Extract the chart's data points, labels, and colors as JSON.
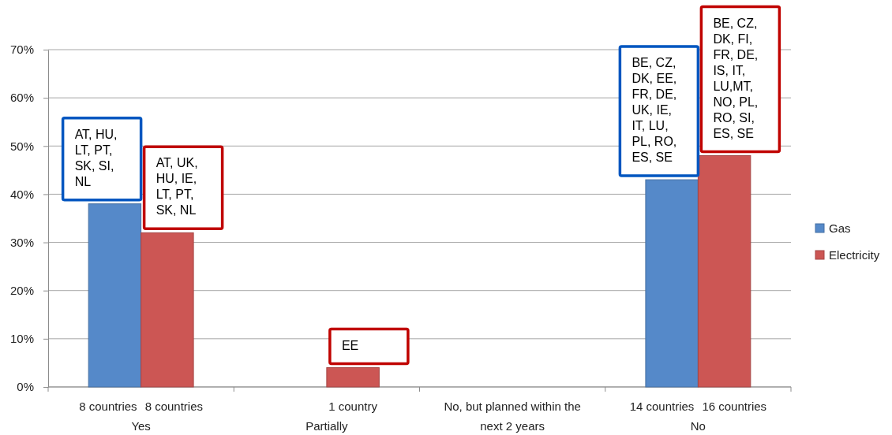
{
  "chart_data": {
    "type": "bar",
    "categories": [
      "Yes",
      "Partially",
      "No, but planned within the next 2 years",
      "No"
    ],
    "series": [
      {
        "name": "Gas",
        "color": "#5589c9",
        "values": [
          38,
          null,
          null,
          43
        ]
      },
      {
        "name": "Electricity",
        "color": "#cc5654",
        "values": [
          32,
          4,
          null,
          48
        ]
      }
    ],
    "ylim": [
      0,
      70
    ],
    "yticks": [
      {
        "value": 0,
        "label": "0%"
      },
      {
        "value": 10,
        "label": "10%"
      },
      {
        "value": 20,
        "label": "20%"
      },
      {
        "value": 30,
        "label": "30%"
      },
      {
        "value": 40,
        "label": "40%"
      },
      {
        "value": 50,
        "label": "50%"
      },
      {
        "value": 60,
        "label": "60%"
      },
      {
        "value": 70,
        "label": "70%"
      }
    ],
    "grid": "y",
    "legend": "right",
    "annotations": [
      {
        "text": "AT, HU, LT, PT, SK, SI, NL",
        "x": "Yes",
        "y": 38
      },
      {
        "text": "AT, UK, HU, IE, LT, PT, SK, NL",
        "x": "Yes",
        "y": 32
      },
      {
        "text": "EE",
        "x": "Partially",
        "y": 4
      },
      {
        "text": "BE, CZ, DK, EE, FR, DE, UK, IE, IT, LU, PL, RO, ES, SE",
        "x": "No",
        "y": 43
      },
      {
        "text": "BE, CZ, DK, FI, FR, DE, IS, IT, LU,MT, NO, PL, RO, SI, ES, SE",
        "x": "No",
        "y": 48
      },
      "8 countries",
      "8 countries",
      "1 country",
      "14 countries",
      "16 countries"
    ]
  }
}
